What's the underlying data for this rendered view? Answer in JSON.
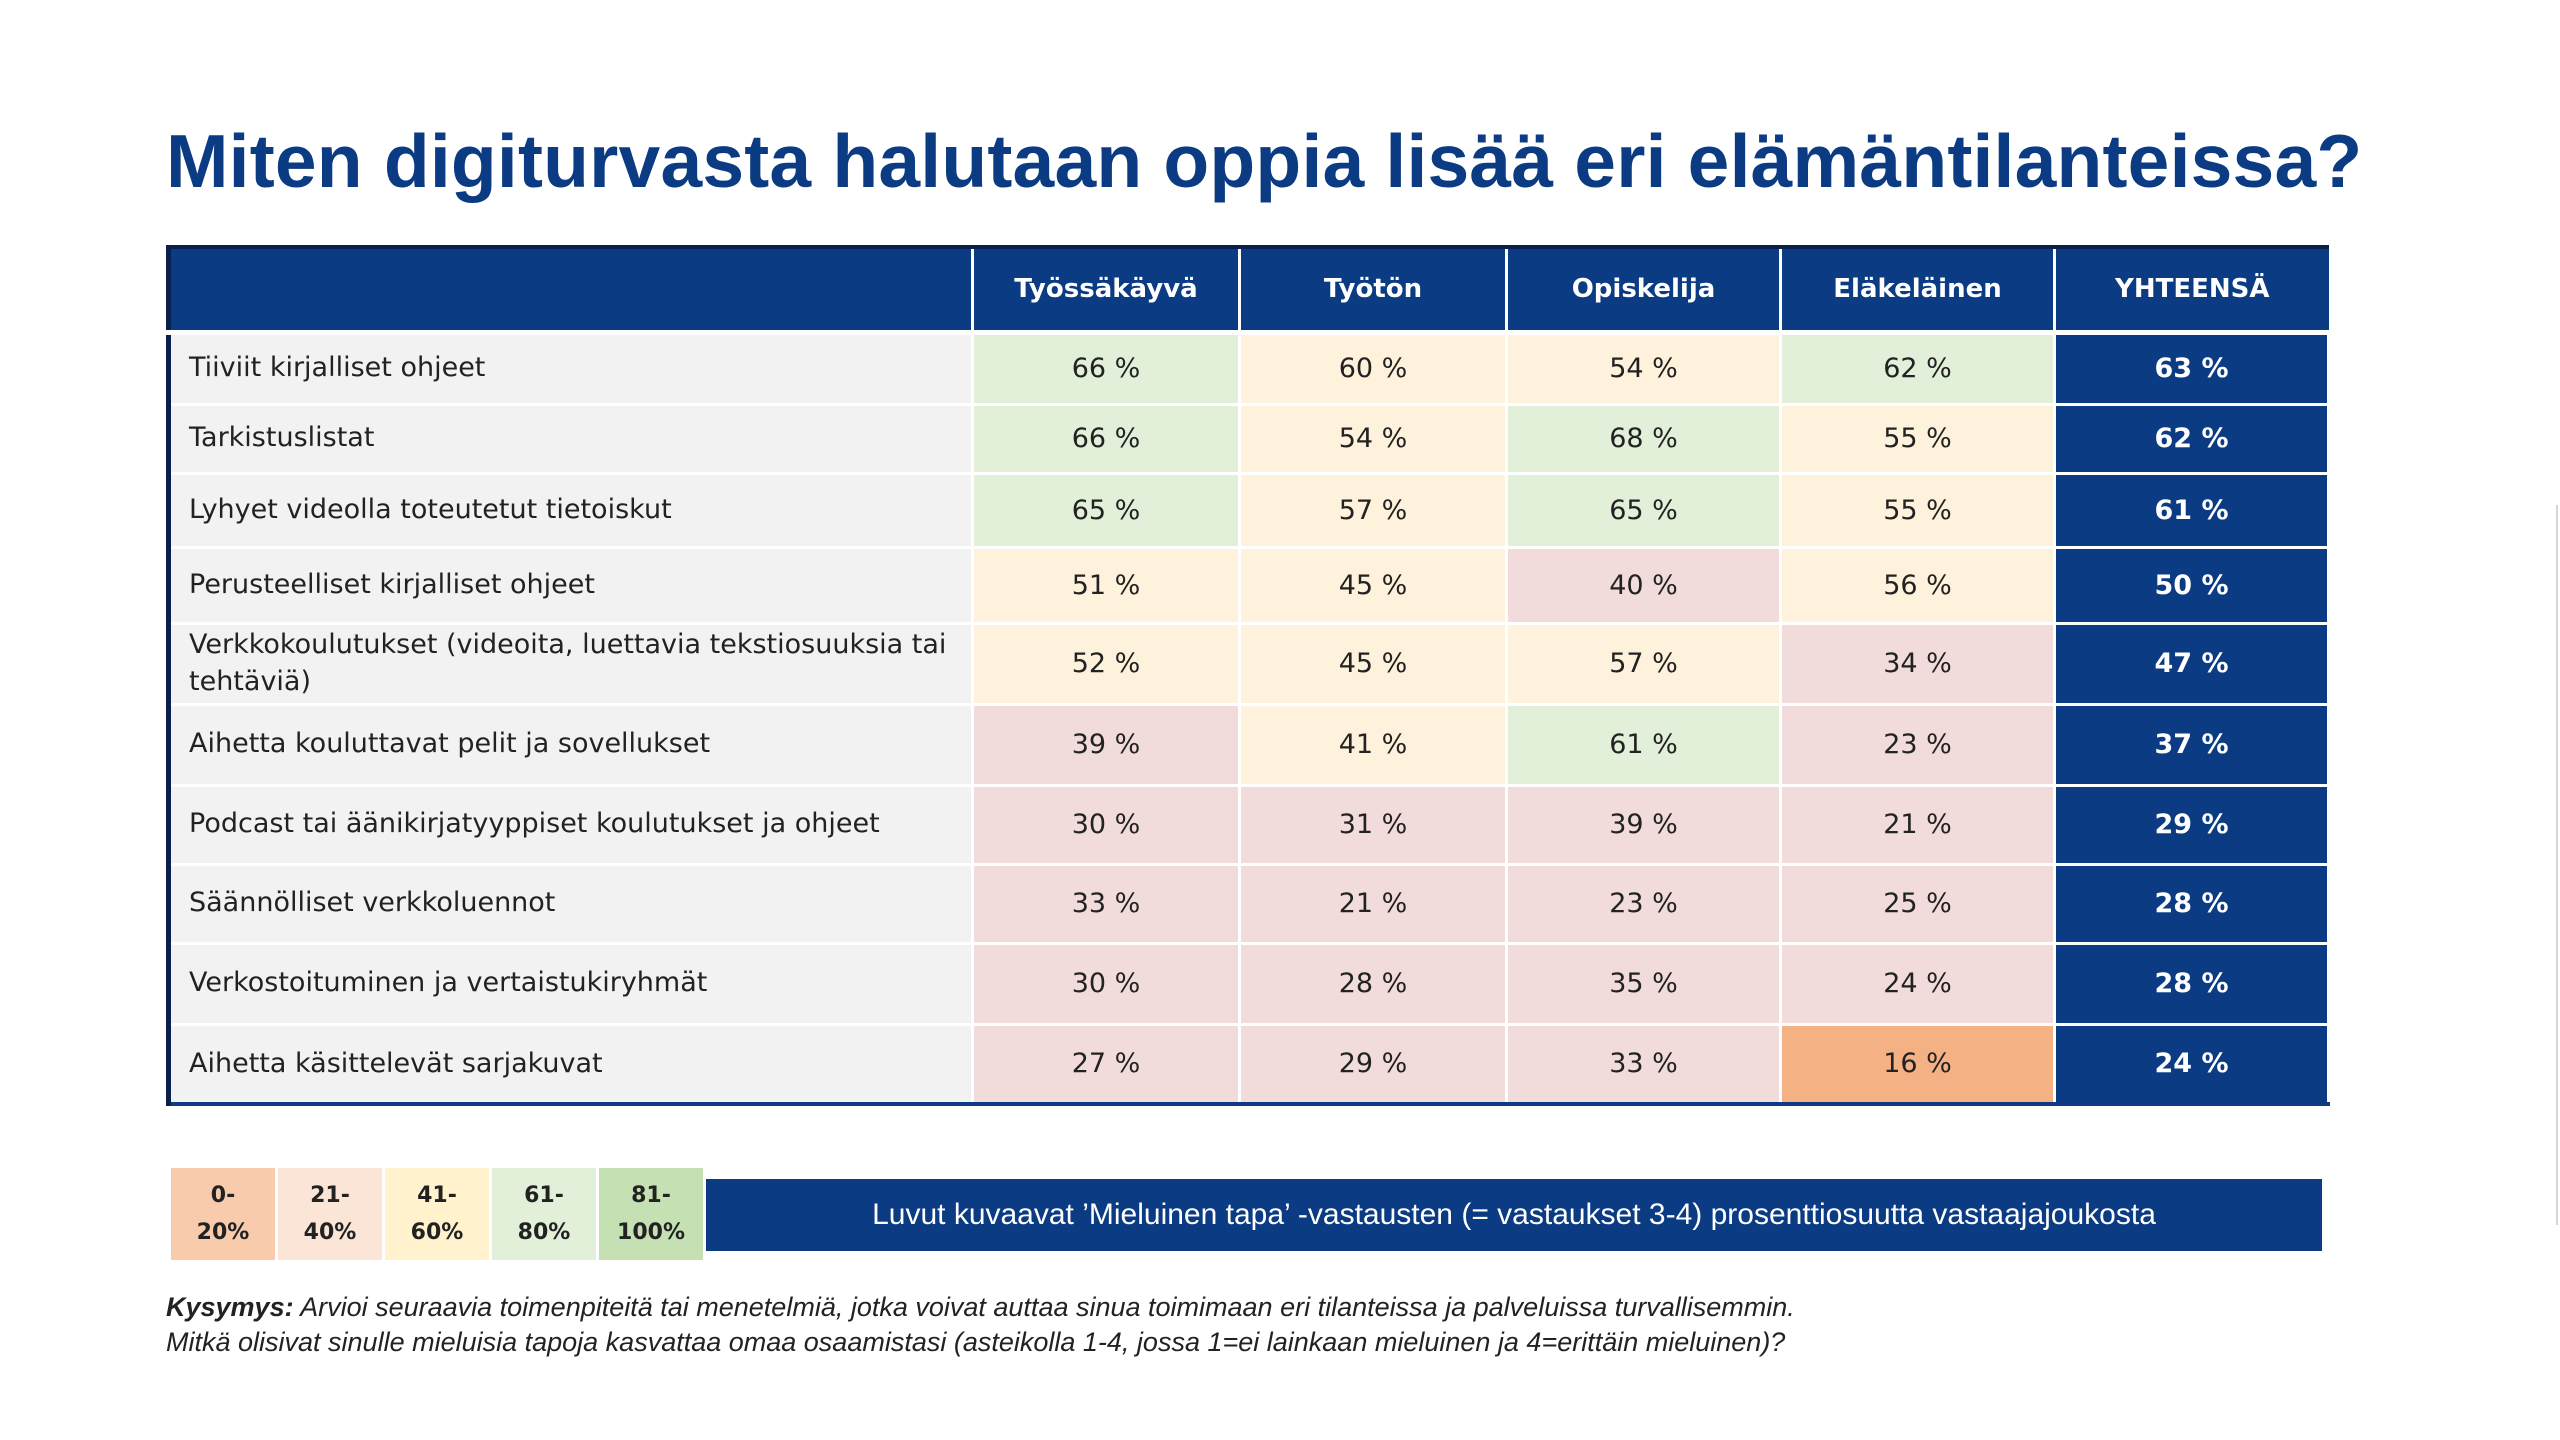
{
  "title": "Miten digiturvasta halutaan oppia lisää eri elämäntilanteissa?",
  "columns": [
    "Työssäkäyvä",
    "Työtön",
    "Opiskelija",
    "Eläkeläinen",
    "YHTEENSÄ"
  ],
  "rows": [
    {
      "label": "Tiiviit kirjalliset ohjeet",
      "values": [
        "66 %",
        "60 %",
        "54 %",
        "62 %"
      ],
      "total": "63 %",
      "colors": [
        "#e2efd9",
        "#fff2dc",
        "#fff2dc",
        "#e2efd9"
      ]
    },
    {
      "label": "Tarkistuslistat",
      "values": [
        "66 %",
        "54 %",
        "68 %",
        "55 %"
      ],
      "total": "62 %",
      "colors": [
        "#e2efd9",
        "#fff2dc",
        "#e2efd9",
        "#fff2dc"
      ]
    },
    {
      "label": "Lyhyet videolla toteutetut tietoiskut",
      "values": [
        "65 %",
        "57 %",
        "65 %",
        "55 %"
      ],
      "total": "61 %",
      "colors": [
        "#e2efd9",
        "#fff2dc",
        "#e2efd9",
        "#fff2dc"
      ]
    },
    {
      "label": "Perusteelliset kirjalliset ohjeet",
      "values": [
        "51 %",
        "45 %",
        "40 %",
        "56 %"
      ],
      "total": "50 %",
      "colors": [
        "#fff2dc",
        "#fff2dc",
        "#f2dcdb",
        "#fff2dc"
      ]
    },
    {
      "label": "Verkkokoulutukset (videoita, luettavia tekstiosuuksia tai tehtäviä)",
      "values": [
        "52 %",
        "45 %",
        "57 %",
        "34 %"
      ],
      "total": "47 %",
      "colors": [
        "#fff2dc",
        "#fff2dc",
        "#fff2dc",
        "#f2dcdb"
      ]
    },
    {
      "label": "Aihetta kouluttavat pelit ja sovellukset",
      "values": [
        "39 %",
        "41 %",
        "61 %",
        "23 %"
      ],
      "total": "37 %",
      "colors": [
        "#f2dcdb",
        "#fff2dc",
        "#e2efd9",
        "#f2dcdb"
      ]
    },
    {
      "label": "Podcast tai äänikirjatyyppiset koulutukset ja ohjeet",
      "values": [
        "30 %",
        "31 %",
        "39 %",
        "21 %"
      ],
      "total": "29 %",
      "colors": [
        "#f2dcdb",
        "#f2dcdb",
        "#f2dcdb",
        "#f2dcdb"
      ]
    },
    {
      "label": "Säännölliset verkkoluennot",
      "values": [
        "33 %",
        "21 %",
        "23 %",
        "25 %"
      ],
      "total": "28 %",
      "colors": [
        "#f2dcdb",
        "#f2dcdb",
        "#f2dcdb",
        "#f2dcdb"
      ]
    },
    {
      "label": "Verkostoituminen ja vertaistukiryhmät",
      "values": [
        "30 %",
        "28 %",
        "35 %",
        "24 %"
      ],
      "total": "28 %",
      "colors": [
        "#f2dcdb",
        "#f2dcdb",
        "#f2dcdb",
        "#f2dcdb"
      ]
    },
    {
      "label": "Aihetta käsittelevät sarjakuvat",
      "values": [
        "27 %",
        "29 %",
        "33 %",
        "16 %"
      ],
      "total": "24 %",
      "colors": [
        "#f2dcdb",
        "#f2dcdb",
        "#f2dcdb",
        "#f4b183"
      ]
    }
  ],
  "legend": [
    {
      "label": "0-\n20%",
      "color": "#f8cbad"
    },
    {
      "label": "21-\n40%",
      "color": "#fbe5d6"
    },
    {
      "label": "41-\n60%",
      "color": "#fff2cc"
    },
    {
      "label": "61-\n80%",
      "color": "#e2efd9"
    },
    {
      "label": "81-\n100%",
      "color": "#c5e0b3"
    }
  ],
  "note": "Luvut kuvaavat ’Mieluinen tapa’ -vastausten (= vastaukset 3-4) prosenttiosuutta vastaajajoukosta",
  "question": {
    "prefix": "Kysymys:",
    "line1": " Arvioi seuraavia toimenpiteitä tai menetelmiä, jotka voivat auttaa sinua toimimaan eri tilanteissa ja palveluissa turvallisemmin.",
    "line2": "Mitkä olisivat sinulle mieluisia tapoja kasvattaa omaa osaamistasi (asteikolla 1-4, jossa 1=ei lainkaan mieluinen ja 4=erittäin mieluinen)?"
  },
  "colors": {
    "navy": "#0b3b82",
    "label_bg": "#f2f2f2"
  }
}
